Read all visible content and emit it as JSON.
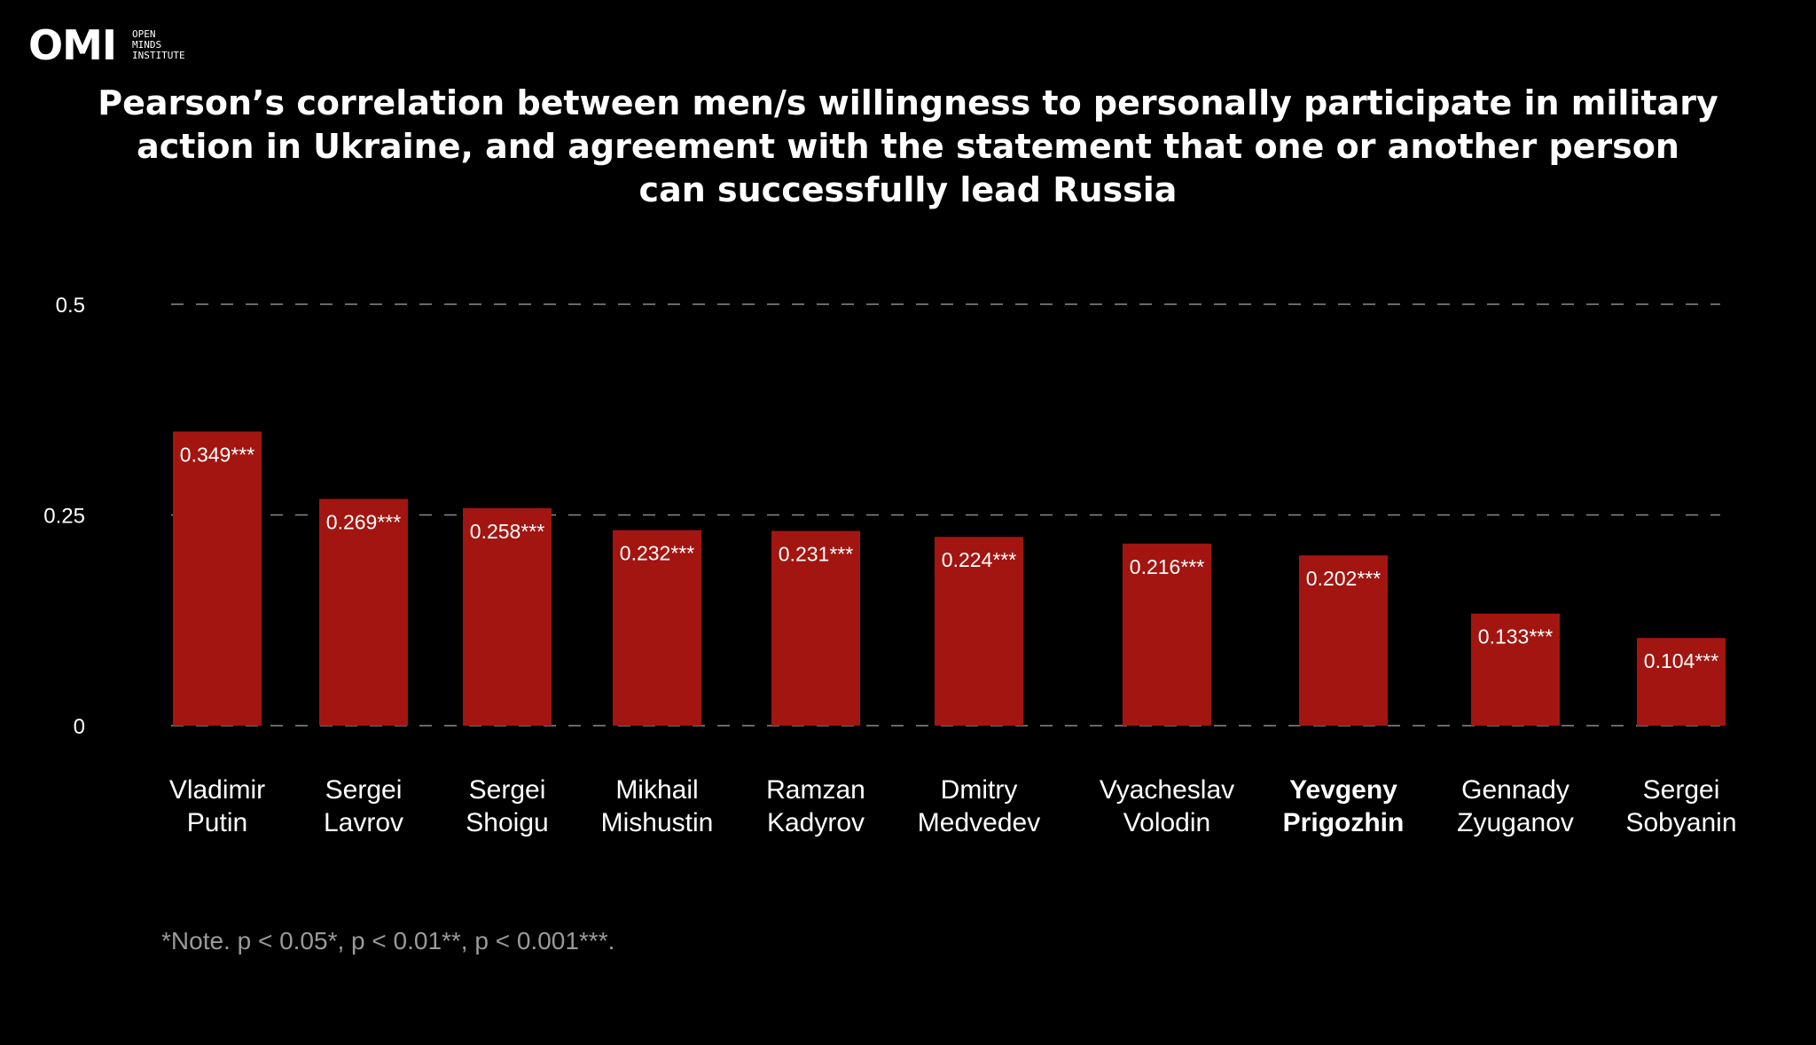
{
  "logo": {
    "mark": "OMI",
    "text": [
      "OPEN",
      "MINDS",
      "INSTITUTE"
    ]
  },
  "title_lines": [
    "Pearson’s correlation between men/s willingness to personally participate in military",
    "action in  Ukraine, and agreement with the statement that one or another person",
    "can successfully lead Russia"
  ],
  "note": "*Note. p < 0.05*, p < 0.01**, p < 0.001***.",
  "colors": {
    "bar": "#a31510",
    "background": "#000000",
    "grid": "#8a8a8a",
    "text": "#ffffff",
    "note": "#9a9a9a"
  },
  "chart_data": {
    "type": "bar",
    "categories": [
      [
        "Vladimir",
        "Putin"
      ],
      [
        "Sergei",
        "Lavrov"
      ],
      [
        "Sergei",
        "Shoigu"
      ],
      [
        "Mikhail",
        "Mishustin"
      ],
      [
        "Ramzan",
        "Kadyrov"
      ],
      [
        "Dmitry",
        "Medvedev"
      ],
      [
        "Vyacheslav",
        "Volodin"
      ],
      [
        "Yevgeny",
        "Prigozhin"
      ],
      [
        "Gennady",
        "Zyuganov"
      ],
      [
        "Sergei",
        "Sobyanin"
      ]
    ],
    "bold_category": 7,
    "values": [
      0.349,
      0.269,
      0.258,
      0.232,
      0.231,
      0.224,
      0.216,
      0.202,
      0.133,
      0.104
    ],
    "value_labels": [
      "0.349***",
      "0.269***",
      "0.258***",
      "0.232***",
      "0.231***",
      "0.224***",
      "0.216***",
      "0.202***",
      "0.133***",
      "0.104***"
    ],
    "y_ticks": [
      0,
      0.25,
      0.5
    ],
    "y_tick_labels": [
      "0",
      "0.25",
      "0.5"
    ],
    "ylim": [
      0,
      0.5
    ],
    "grid": "dashed horizontal",
    "xlabel": "",
    "ylabel": ""
  }
}
